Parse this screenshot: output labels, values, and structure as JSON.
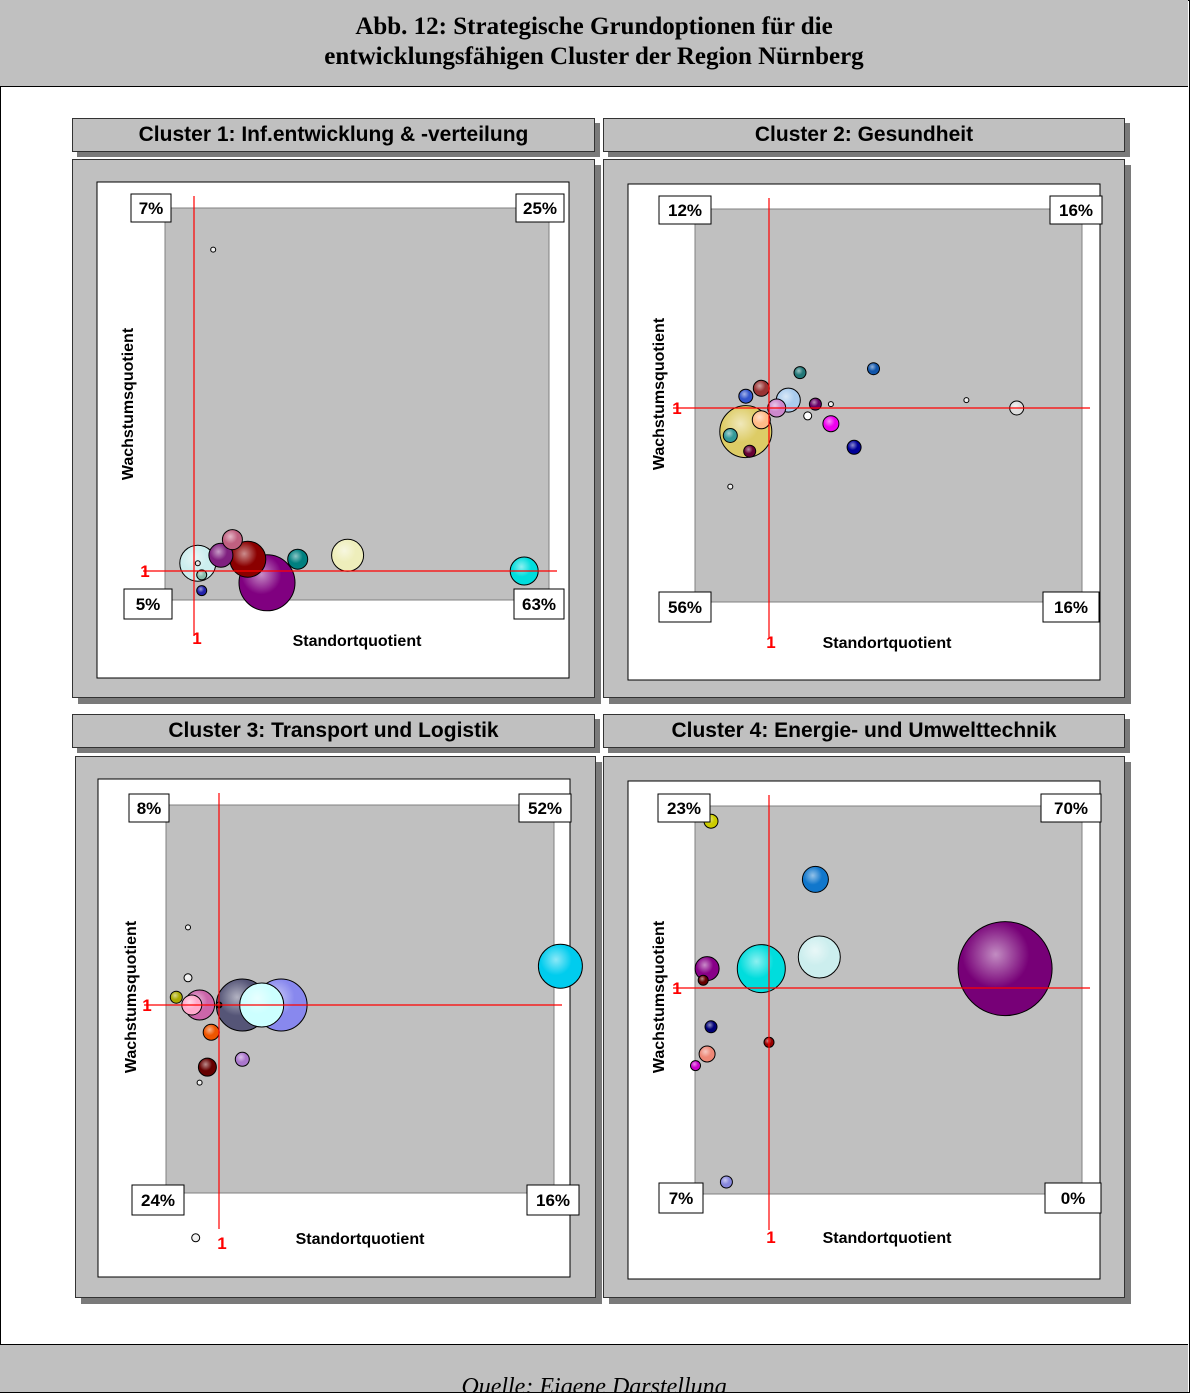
{
  "header": {
    "line1": "Abb. 12: Strategische Grundoptionen für die",
    "line2": "entwicklungsfähigen Cluster der Region Nürnberg"
  },
  "footer": "Quelle: Eigene Darstellung",
  "colors": {
    "axis_line": "#ff0000",
    "plot_bg": "#c0c0c0",
    "panel_bg": "#c0c0c0"
  },
  "chart_data": [
    {
      "type": "scatter",
      "title": "Cluster 1: Inf.entwicklung & -verteilung",
      "xlabel": "Standortquotient",
      "ylabel": "Wachstumsquotient",
      "reference_x_label": "1",
      "reference_y_label": "1",
      "quadrants": {
        "top_left": "7%",
        "top_right": "25%",
        "bottom_left": "5%",
        "bottom_right": "63%"
      },
      "points": [
        {
          "x": 0.05,
          "y": 0.82,
          "r": 2.5,
          "color": "#eeeeee"
        },
        {
          "x": 0.1,
          "y": 0.08,
          "r": 10,
          "color": "#c06080"
        },
        {
          "x": 0.07,
          "y": 0.04,
          "r": 12,
          "color": "#802080"
        },
        {
          "x": 0.14,
          "y": 0.03,
          "r": 18,
          "color": "#8b0000"
        },
        {
          "x": 0.19,
          "y": -0.03,
          "r": 28,
          "color": "#800080"
        },
        {
          "x": 0.27,
          "y": 0.03,
          "r": 10,
          "color": "#008080"
        },
        {
          "x": 0.4,
          "y": 0.04,
          "r": 16,
          "color": "#eeeebb"
        },
        {
          "x": 0.86,
          "y": 0.0,
          "r": 14,
          "color": "#00dddd"
        },
        {
          "x": 0.02,
          "y": -0.01,
          "r": 5,
          "color": "#88bbaa"
        },
        {
          "x": 0.01,
          "y": 0.02,
          "r": 2.5,
          "color": "#dddddd"
        },
        {
          "x": 0.02,
          "y": -0.05,
          "r": 5,
          "color": "#2222aa"
        },
        {
          "x": 0.01,
          "y": 0.02,
          "r": 18,
          "color": "#cceeee"
        }
      ]
    },
    {
      "type": "scatter",
      "title": "Cluster 2: Gesundheit",
      "xlabel": "Standortquotient",
      "ylabel": "Wachstumsquotient",
      "reference_x_label": "1",
      "reference_y_label": "1",
      "quadrants": {
        "top_left": "12%",
        "top_right": "16%",
        "bottom_left": "56%",
        "bottom_right": "16%"
      },
      "points": [
        {
          "x": -0.06,
          "y": -0.06,
          "r": 26,
          "color": "#ddcc66"
        },
        {
          "x": 0.05,
          "y": 0.02,
          "r": 12,
          "color": "#aaccee"
        },
        {
          "x": -0.06,
          "y": 0.03,
          "r": 7,
          "color": "#3355cc"
        },
        {
          "x": -0.02,
          "y": 0.05,
          "r": 8,
          "color": "#993333"
        },
        {
          "x": 0.08,
          "y": 0.09,
          "r": 6,
          "color": "#227777"
        },
        {
          "x": 0.12,
          "y": 0.01,
          "r": 6,
          "color": "#660066"
        },
        {
          "x": 0.1,
          "y": -0.02,
          "r": 4,
          "color": "#ffffff"
        },
        {
          "x": 0.16,
          "y": 0.01,
          "r": 2.5,
          "color": "#eeeeee"
        },
        {
          "x": 0.16,
          "y": -0.04,
          "r": 8,
          "color": "#ee00ee"
        },
        {
          "x": 0.22,
          "y": -0.1,
          "r": 7,
          "color": "#000099"
        },
        {
          "x": 0.27,
          "y": 0.1,
          "r": 6,
          "color": "#1155aa"
        },
        {
          "x": 0.51,
          "y": 0.02,
          "r": 2.5,
          "color": "#eeeeee"
        },
        {
          "x": 0.64,
          "y": 0.0,
          "r": 7,
          "color": "#dddddd"
        },
        {
          "x": -0.1,
          "y": -0.07,
          "r": 7,
          "color": "#339999"
        },
        {
          "x": -0.05,
          "y": -0.11,
          "r": 6,
          "color": "#660033"
        },
        {
          "x": -0.1,
          "y": -0.2,
          "r": 2.5,
          "color": "#eeeeee"
        },
        {
          "x": 0.02,
          "y": 0.0,
          "r": 9,
          "color": "#cc88cc"
        },
        {
          "x": -0.02,
          "y": -0.03,
          "r": 9,
          "color": "#ffbb88"
        }
      ]
    },
    {
      "type": "scatter",
      "title": "Cluster 3: Transport und Logistik",
      "xlabel": "Standortquotient",
      "ylabel": "Wachstumsquotient",
      "reference_x_label": "1",
      "reference_y_label": "1",
      "quadrants": {
        "top_left": "8%",
        "top_right": "52%",
        "bottom_left": "24%",
        "bottom_right": "16%"
      },
      "points": [
        {
          "x": -0.08,
          "y": 0.2,
          "r": 2.5,
          "color": "#eeeeee"
        },
        {
          "x": -0.08,
          "y": 0.07,
          "r": 4,
          "color": "#eeeeee"
        },
        {
          "x": -0.11,
          "y": 0.02,
          "r": 6,
          "color": "#aaaa00"
        },
        {
          "x": -0.05,
          "y": 0.0,
          "r": 15,
          "color": "#cc66aa"
        },
        {
          "x": 0.06,
          "y": 0.0,
          "r": 26,
          "color": "#555577"
        },
        {
          "x": 0.11,
          "y": 0.0,
          "r": 22,
          "color": "#ccffff"
        },
        {
          "x": 0.16,
          "y": 0.0,
          "r": 26,
          "color": "#8888ee"
        },
        {
          "x": -0.02,
          "y": -0.07,
          "r": 8,
          "color": "#ee5500"
        },
        {
          "x": -0.03,
          "y": -0.16,
          "r": 9,
          "color": "#660000"
        },
        {
          "x": 0.06,
          "y": -0.14,
          "r": 7,
          "color": "#aa77cc"
        },
        {
          "x": -0.05,
          "y": -0.2,
          "r": 2.5,
          "color": "#eeeeee"
        },
        {
          "x": -0.06,
          "y": -0.6,
          "r": 4,
          "color": "#eeeeee"
        },
        {
          "x": 0.0,
          "y": 0.0,
          "r": 3,
          "color": "#111111"
        },
        {
          "x": -0.07,
          "y": 0.0,
          "r": 10,
          "color": "#ffaacc"
        },
        {
          "x": 0.88,
          "y": 0.1,
          "r": 22,
          "color": "#00ccee"
        }
      ]
    },
    {
      "type": "scatter",
      "title": "Cluster 4: Energie- und Umwelttechnik",
      "xlabel": "Standortquotient",
      "ylabel": "Wachstumsquotient",
      "reference_x_label": "1",
      "reference_y_label": "1",
      "quadrants": {
        "top_left": "23%",
        "top_right": "70%",
        "bottom_left": "7%",
        "bottom_right": "0%"
      },
      "points": [
        {
          "x": -0.15,
          "y": 0.43,
          "r": 7,
          "color": "#cccc00"
        },
        {
          "x": -0.16,
          "y": 0.05,
          "r": 12,
          "color": "#880088"
        },
        {
          "x": -0.17,
          "y": 0.02,
          "r": 5,
          "color": "#660000"
        },
        {
          "x": -0.15,
          "y": -0.1,
          "r": 6,
          "color": "#000077"
        },
        {
          "x": -0.16,
          "y": -0.17,
          "r": 8,
          "color": "#ee8877"
        },
        {
          "x": -0.19,
          "y": -0.2,
          "r": 5,
          "color": "#cc00cc"
        },
        {
          "x": -0.11,
          "y": -0.5,
          "r": 6,
          "color": "#8888dd"
        },
        {
          "x": 0.0,
          "y": -0.14,
          "r": 5,
          "color": "#990000"
        },
        {
          "x": -0.02,
          "y": 0.05,
          "r": 24,
          "color": "#00dddd"
        },
        {
          "x": 0.13,
          "y": 0.08,
          "r": 21,
          "color": "#cceeee"
        },
        {
          "x": 0.12,
          "y": 0.28,
          "r": 13,
          "color": "#1177cc"
        },
        {
          "x": 0.61,
          "y": 0.05,
          "r": 47,
          "color": "#770077"
        }
      ]
    }
  ]
}
